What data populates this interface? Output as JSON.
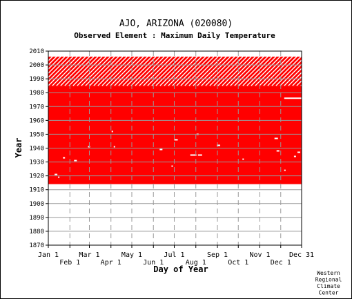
{
  "chart_data": {
    "type": "heatmap",
    "title": "AJO, ARIZONA   (020080)",
    "subtitle": "Observed Element : Maximum Daily Temperature",
    "xlabel": "Day of Year",
    "ylabel": "Year",
    "xlim": [
      1,
      365
    ],
    "ylim": [
      1870,
      2010
    ],
    "x_ticks_row1": [
      {
        "label": "Jan 1",
        "day": 1
      },
      {
        "label": "Mar 1",
        "day": 60
      },
      {
        "label": "May 1",
        "day": 121
      },
      {
        "label": "Jul 1",
        "day": 182
      },
      {
        "label": "Sep 1",
        "day": 244
      },
      {
        "label": "Nov 1",
        "day": 305
      },
      {
        "label": "Dec 31",
        "day": 365
      }
    ],
    "x_ticks_row2": [
      {
        "label": "Feb 1",
        "day": 32
      },
      {
        "label": "Apr 1",
        "day": 91
      },
      {
        "label": "Jun 1",
        "day": 152
      },
      {
        "label": "Aug 1",
        "day": 213
      },
      {
        "label": "Oct 1",
        "day": 274
      },
      {
        "label": "Dec 1",
        "day": 335
      }
    ],
    "y_ticks": [
      2010,
      2000,
      1990,
      1980,
      1970,
      1960,
      1950,
      1940,
      1930,
      1920,
      1910,
      1900,
      1890,
      1880,
      1870
    ],
    "data_color": "#ff0000",
    "record_start_year": 1914,
    "solid_record_end_year": 1985,
    "partial_record_end_year": 2006,
    "missing_marks": [
      {
        "year": 1921,
        "day_start": 10,
        "day_end": 14
      },
      {
        "year": 1919,
        "day_start": 15,
        "day_end": 17
      },
      {
        "year": 1933,
        "day_start": 22,
        "day_end": 25
      },
      {
        "year": 1931,
        "day_start": 38,
        "day_end": 42
      },
      {
        "year": 1941,
        "day_start": 58,
        "day_end": 61
      },
      {
        "year": 1952,
        "day_start": 92,
        "day_end": 94
      },
      {
        "year": 1941,
        "day_start": 95,
        "day_end": 97
      },
      {
        "year": 1939,
        "day_start": 161,
        "day_end": 165
      },
      {
        "year": 1927,
        "day_start": 178,
        "day_end": 180
      },
      {
        "year": 1946,
        "day_start": 182,
        "day_end": 187
      },
      {
        "year": 1935,
        "day_start": 205,
        "day_end": 214
      },
      {
        "year": 1950,
        "day_start": 214,
        "day_end": 217
      },
      {
        "year": 1935,
        "day_start": 216,
        "day_end": 222
      },
      {
        "year": 1942,
        "day_start": 243,
        "day_end": 248
      },
      {
        "year": 1932,
        "day_start": 280,
        "day_end": 282
      },
      {
        "year": 1947,
        "day_start": 326,
        "day_end": 331
      },
      {
        "year": 1938,
        "day_start": 329,
        "day_end": 333
      },
      {
        "year": 1924,
        "day_start": 340,
        "day_end": 342
      },
      {
        "year": 1976,
        "day_start": 340,
        "day_end": 365
      },
      {
        "year": 1934,
        "day_start": 354,
        "day_end": 357
      },
      {
        "year": 1937,
        "day_start": 359,
        "day_end": 363
      }
    ],
    "credit_lines": [
      "Western",
      "Regional",
      "Climate",
      "Center"
    ]
  }
}
